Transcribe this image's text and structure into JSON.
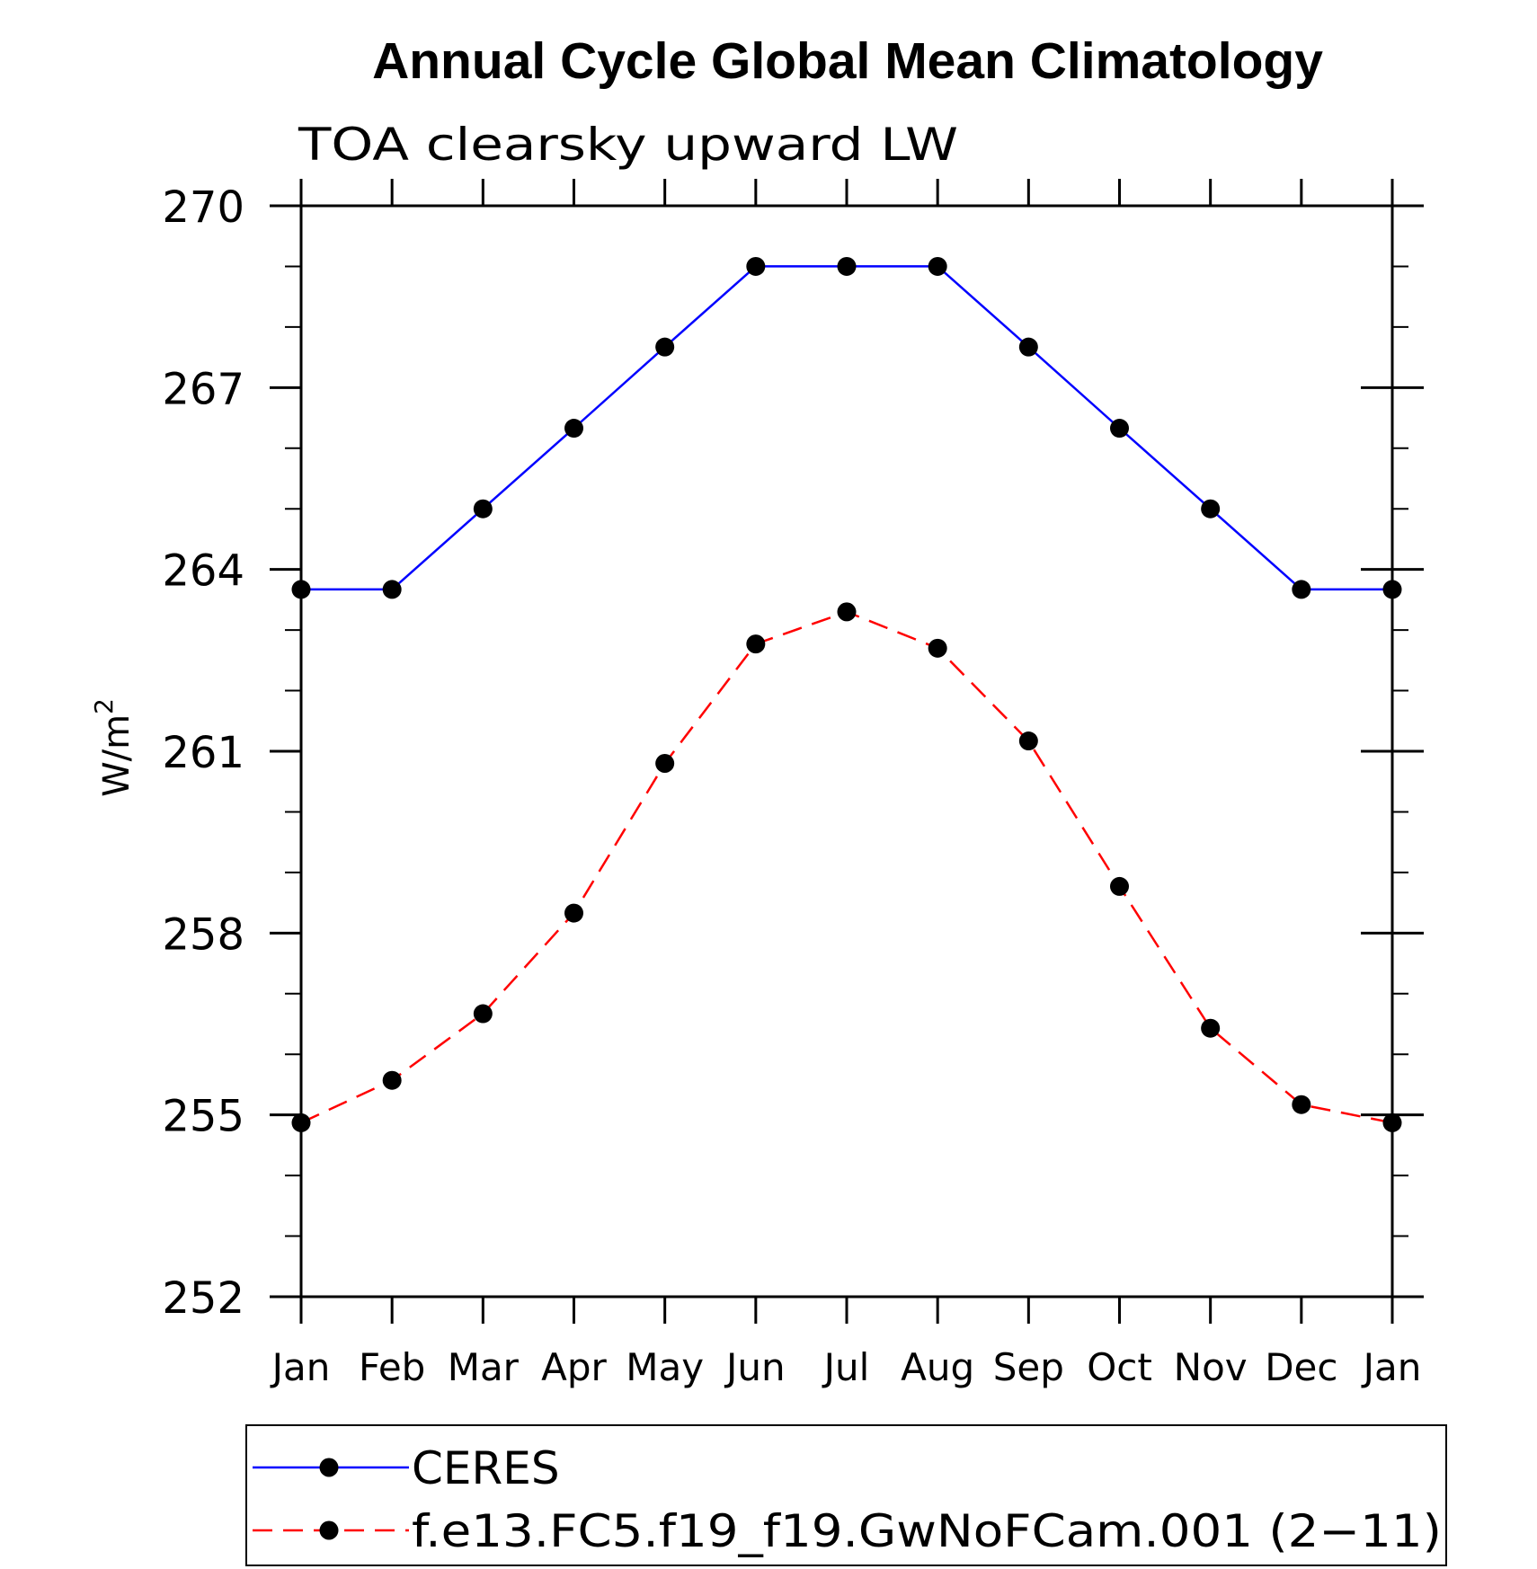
{
  "chart_data": {
    "type": "line",
    "title": "Annual Cycle Global Mean Climatology",
    "subtitle": "TOA clearsky upward LW",
    "xlabel": "",
    "ylabel_base": "W/m",
    "ylabel_sup": "2",
    "categories": [
      "Jan",
      "Feb",
      "Mar",
      "Apr",
      "May",
      "Jun",
      "Jul",
      "Aug",
      "Sep",
      "Oct",
      "Nov",
      "Dec",
      "Jan"
    ],
    "ylim": [
      252,
      270
    ],
    "yticks": [
      252,
      255,
      258,
      261,
      264,
      267,
      270
    ],
    "yticks_minor": [
      253,
      254,
      256,
      257,
      259,
      260,
      262,
      263,
      265,
      266,
      268,
      269
    ],
    "grid": false,
    "legend_position": "bottom",
    "series": [
      {
        "name": "CERES",
        "color": "#0000ff",
        "dash": "solid",
        "values": [
          263.67,
          263.67,
          265.0,
          266.33,
          267.67,
          269.0,
          269.0,
          269.0,
          267.67,
          266.33,
          265.0,
          263.67,
          263.67
        ]
      },
      {
        "name": "f.e13.FC5.f19_f19.GwNoFCam.001 (2−11)",
        "color": "#ff0000",
        "dash": "dashed",
        "values": [
          254.87,
          255.57,
          256.67,
          258.33,
          260.8,
          262.77,
          263.3,
          262.7,
          261.17,
          258.77,
          256.43,
          255.17,
          254.87
        ]
      }
    ]
  }
}
